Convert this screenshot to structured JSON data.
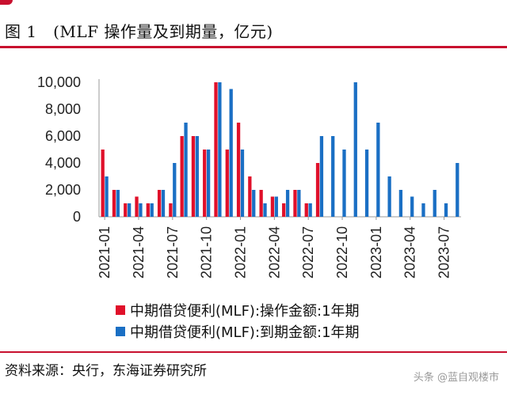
{
  "header": {
    "title": "图 1　(MLF 操作量及到期量，亿元)"
  },
  "footer": {
    "source": "资料来源：央行，东海证券研究所",
    "watermark": "头条 @蓝自观楼市"
  },
  "chart_data": {
    "type": "bar",
    "ylim": [
      0,
      10000
    ],
    "y_ticks": [
      "0",
      "2,000",
      "4,000",
      "6,000",
      "8,000",
      "10,000"
    ],
    "x_tick_labels": [
      "2021-01",
      "2021-04",
      "2021-07",
      "2021-10",
      "2022-01",
      "2022-04",
      "2022-07",
      "2022-10",
      "2023-01",
      "2023-04",
      "2023-07"
    ],
    "categories": [
      "2021-01",
      "2021-02",
      "2021-03",
      "2021-04",
      "2021-05",
      "2021-06",
      "2021-07",
      "2021-08",
      "2021-09",
      "2021-10",
      "2021-11",
      "2021-12",
      "2022-01",
      "2022-02",
      "2022-03",
      "2022-04",
      "2022-05",
      "2022-06",
      "2022-07",
      "2022-08",
      "2022-09",
      "2022-10",
      "2022-11",
      "2022-12",
      "2023-01",
      "2023-02",
      "2023-03",
      "2023-04",
      "2023-05",
      "2023-06",
      "2023-07",
      "2023-08"
    ],
    "series": [
      {
        "name": "中期借贷便利(MLF):操作金额:1年期",
        "color": "#e0102a",
        "values": [
          5000,
          2000,
          1000,
          1500,
          1000,
          2000,
          1000,
          6000,
          6000,
          5000,
          10000,
          5000,
          7000,
          3000,
          2000,
          1500,
          1000,
          2000,
          1000,
          4000,
          null,
          null,
          null,
          null,
          null,
          null,
          null,
          null,
          null,
          null,
          null,
          null
        ]
      },
      {
        "name": "中期借贷便利(MLF):到期金额:1年期",
        "color": "#1a6fc4",
        "values": [
          3000,
          2000,
          1000,
          1000,
          1000,
          2000,
          4000,
          7000,
          6000,
          5000,
          10000,
          9500,
          5000,
          2000,
          1000,
          1500,
          2000,
          2000,
          1000,
          6000,
          6000,
          5000,
          10000,
          5000,
          7000,
          3000,
          2000,
          1500,
          1000,
          2000,
          1000,
          4000
        ]
      }
    ]
  }
}
